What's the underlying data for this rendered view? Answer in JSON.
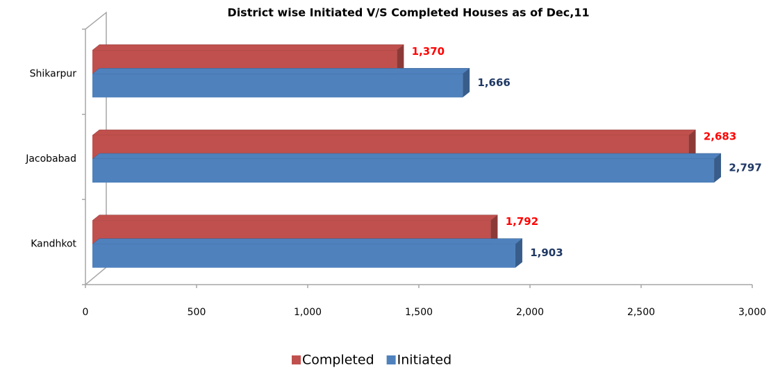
{
  "chart_data": {
    "type": "bar3d_horizontal",
    "title": "District wise Initiated V/S Completed Houses as of Dec,11",
    "categories": [
      "Shikarpur",
      "Jacobabad",
      "Kandhkot"
    ],
    "series": [
      {
        "name": "Completed",
        "color": "#c0504d",
        "side_color": "#8c3a38",
        "label_color": "#ff0000",
        "values": [
          1370,
          2683,
          1792
        ],
        "value_labels": [
          "1,370",
          "2,683",
          "1,792"
        ]
      },
      {
        "name": "Initiated",
        "color": "#4f81bd",
        "side_color": "#385d8a",
        "label_color": "#1f3864",
        "values": [
          1666,
          2797,
          1903
        ],
        "value_labels": [
          "1,666",
          "2,797",
          "1,903"
        ]
      }
    ],
    "xlim": [
      0,
      3000
    ],
    "xticks": [
      0,
      500,
      {
        "value": 1000,
        "label": "1,000"
      },
      {
        "value": 1500,
        "label": "1,500"
      },
      {
        "value": 2000,
        "label": "2,000"
      },
      {
        "value": 2500,
        "label": "2,500"
      },
      {
        "value": 3000,
        "label": "3,000"
      }
    ],
    "legend": "bottom"
  }
}
